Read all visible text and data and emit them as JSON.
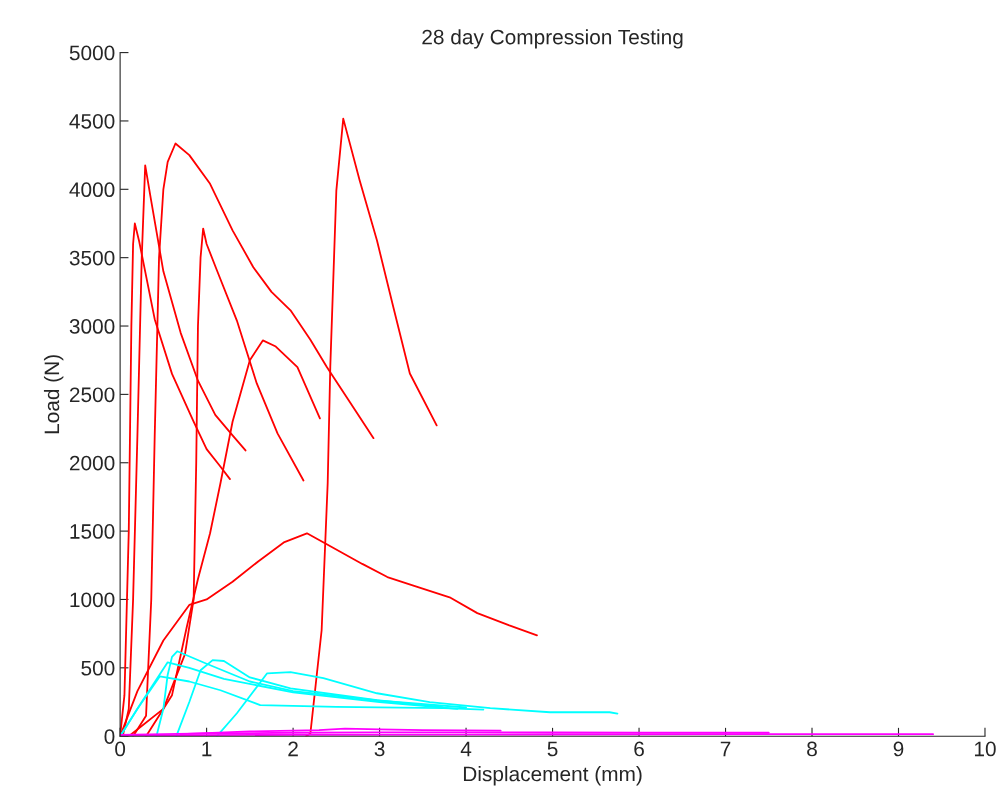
{
  "chart_data": {
    "type": "line",
    "title": "28 day Compression Testing",
    "xlabel": "Displacement (mm)",
    "ylabel": "Load (N)",
    "xlim": [
      0,
      10
    ],
    "xticks": [
      0,
      1,
      2,
      3,
      4,
      5,
      6,
      7,
      8,
      9,
      10
    ],
    "ylim": [
      0,
      5000
    ],
    "yticks": [
      0,
      500,
      1000,
      1500,
      2000,
      2500,
      3000,
      3500,
      4000,
      4500,
      5000
    ],
    "grid": false,
    "legend": false,
    "line_style": "solid",
    "marker": "none",
    "series": [
      {
        "color": "#ff0000",
        "x": [
          0,
          0.05,
          0.1,
          0.13,
          0.15,
          0.17,
          0.22,
          0.4,
          0.6,
          0.85,
          1.0,
          1.15,
          1.27
        ],
        "values": [
          0,
          300,
          1500,
          3000,
          3600,
          3750,
          3620,
          3050,
          2650,
          2300,
          2100,
          1980,
          1880
        ]
      },
      {
        "color": "#ff0000",
        "x": [
          0.03,
          0.1,
          0.15,
          0.2,
          0.25,
          0.29,
          0.35,
          0.5,
          0.7,
          0.9,
          1.1,
          1.3,
          1.45
        ],
        "values": [
          0,
          200,
          1000,
          2200,
          3500,
          4175,
          3950,
          3400,
          2950,
          2600,
          2350,
          2200,
          2090
        ]
      },
      {
        "color": "#ff0000",
        "x": [
          0.15,
          0.3,
          0.36,
          0.4,
          0.45,
          0.5,
          0.55,
          0.64,
          0.8,
          1.04,
          1.3,
          1.54,
          1.75,
          1.97,
          2.2,
          2.39,
          2.65,
          2.93
        ],
        "values": [
          0,
          150,
          1000,
          2200,
          3500,
          4000,
          4200,
          4335,
          4250,
          4040,
          3700,
          3430,
          3250,
          3115,
          2900,
          2700,
          2450,
          2180
        ]
      },
      {
        "color": "#ff0000",
        "x": [
          0.1,
          0.5,
          0.75,
          0.85,
          0.88,
          0.9,
          0.93,
          0.96,
          1.0,
          1.12,
          1.35,
          1.58,
          1.82,
          2.12
        ],
        "values": [
          0,
          200,
          600,
          1000,
          2000,
          3000,
          3500,
          3713,
          3600,
          3406,
          3040,
          2580,
          2215,
          1870
        ]
      },
      {
        "color": "#ff0000",
        "x": [
          0.3,
          0.6,
          0.77,
          0.9,
          1.04,
          1.16,
          1.3,
          1.5,
          1.65,
          1.8,
          2.05,
          2.31
        ],
        "values": [
          0,
          300,
          797,
          1150,
          1484,
          1850,
          2300,
          2750,
          2895,
          2850,
          2700,
          2325
        ]
      },
      {
        "color": "#ff0000",
        "x": [
          0,
          0.2,
          0.5,
          0.8,
          1.0,
          1.3,
          1.6,
          1.9,
          2.16,
          2.4,
          2.8,
          3.09,
          3.4,
          3.81,
          4.13,
          4.5,
          4.82
        ],
        "values": [
          0,
          330,
          700,
          960,
          1000,
          1130,
          1280,
          1420,
          1484,
          1400,
          1260,
          1164,
          1100,
          1016,
          900,
          810,
          738
        ]
      },
      {
        "color": "#ff0000",
        "x": [
          2.15,
          2.2,
          2.33,
          2.4,
          2.43,
          2.5,
          2.58,
          2.77,
          2.97,
          3.16,
          3.35,
          3.66
        ],
        "values": [
          0,
          20,
          775,
          1850,
          2700,
          3990,
          4517,
          4065,
          3625,
          3136,
          2653,
          2273
        ]
      },
      {
        "color": "#00ffff",
        "x": [
          0,
          0.2,
          0.46,
          0.8,
          1.16,
          1.62,
          2.5,
          3.74,
          4.2
        ],
        "values": [
          0,
          200,
          438,
          400,
          336,
          227,
          215,
          205,
          195
        ]
      },
      {
        "color": "#00ffff",
        "x": [
          0.42,
          0.5,
          0.55,
          0.6,
          0.66,
          1.0,
          1.5,
          2.0,
          3.0,
          4.0
        ],
        "values": [
          0,
          200,
          450,
          580,
          621,
          530,
          400,
          330,
          260,
          210
        ]
      },
      {
        "color": "#00ffff",
        "x": [
          0,
          0.25,
          0.55,
          0.8,
          1.2,
          2.0,
          3.0,
          3.9
        ],
        "values": [
          0,
          250,
          540,
          500,
          420,
          320,
          250,
          200
        ]
      },
      {
        "color": "#00ffff",
        "x": [
          0.65,
          0.8,
          0.93,
          1.07,
          1.2,
          1.5,
          1.97,
          2.97,
          3.73
        ],
        "values": [
          0,
          250,
          482,
          556,
          550,
          430,
          350,
          263,
          212
        ]
      },
      {
        "color": "#00ffff",
        "x": [
          1.12,
          1.35,
          1.7,
          1.97,
          2.35,
          2.97,
          3.58,
          4.28,
          4.97,
          5.66,
          5.75
        ],
        "values": [
          0,
          168,
          460,
          468,
          424,
          314,
          249,
          205,
          175,
          175,
          165
        ]
      },
      {
        "color": "#ff00ff",
        "x": [
          0,
          2,
          4,
          6,
          8,
          9.4
        ],
        "values": [
          5,
          10,
          12,
          14,
          15,
          15
        ]
      },
      {
        "color": "#ff00ff",
        "x": [
          0,
          1,
          2,
          3,
          4,
          5,
          6,
          7.5
        ],
        "values": [
          10,
          20,
          25,
          28,
          28,
          27,
          26,
          25
        ]
      },
      {
        "color": "#ff00ff",
        "x": [
          0.7,
          1.5,
          2.3,
          2.6,
          3,
          3.5,
          4.4
        ],
        "values": [
          15,
          35,
          45,
          55,
          50,
          45,
          40
        ]
      }
    ]
  }
}
